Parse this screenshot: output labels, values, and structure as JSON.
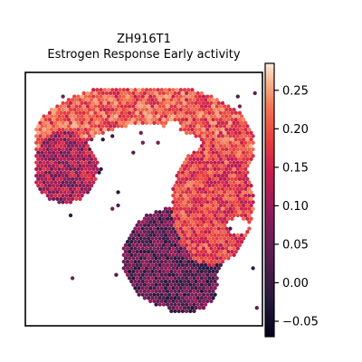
{
  "chart_data": {
    "type": "heatmap",
    "subtype": "spatial-hexbin-scatter",
    "title": "ZH916T1",
    "subtitle": "Estrogen Response Early activity",
    "xlabel": "",
    "ylabel": "",
    "colormap": "rocket",
    "colorbar": {
      "vmin": -0.07,
      "vmax": 0.285,
      "ticks": [
        -0.05,
        0.0,
        0.05,
        0.1,
        0.15,
        0.2,
        0.25
      ],
      "tick_labels": [
        "−0.05",
        "0.00",
        "0.05",
        "0.10",
        "0.15",
        "0.20",
        "0.25"
      ]
    },
    "grid": false,
    "regions": [
      {
        "name": "upper arc",
        "approx_value": 0.2
      },
      {
        "name": "left lobe",
        "approx_value": 0.12
      },
      {
        "name": "right band",
        "approx_value": 0.18
      },
      {
        "name": "lower extension",
        "approx_value": 0.04
      }
    ]
  }
}
